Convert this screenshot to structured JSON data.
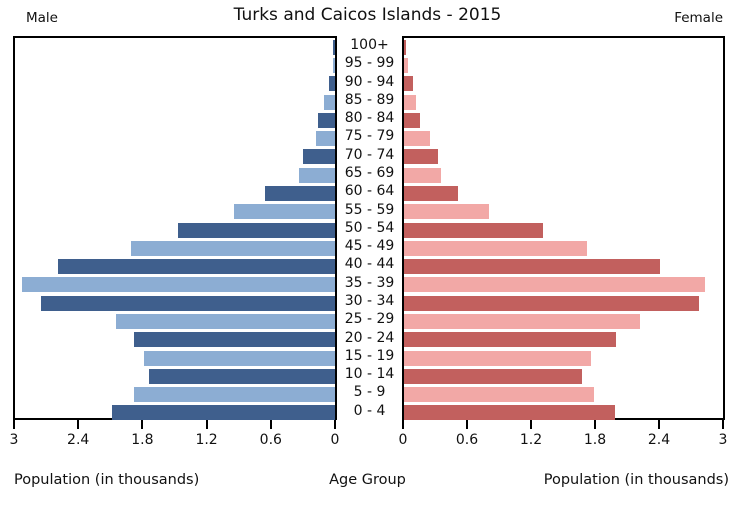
{
  "header": {
    "title": "Turks and Caicos Islands - 2015",
    "left_label": "Male",
    "right_label": "Female"
  },
  "axis": {
    "left_ticks": [
      "3",
      "2.4",
      "1.8",
      "1.2",
      "0.6",
      "0"
    ],
    "right_ticks": [
      "0",
      "0.6",
      "1.2",
      "1.8",
      "2.4",
      "3"
    ],
    "left_caption": "Population (in thousands)",
    "center_caption": "Age Group",
    "right_caption": "Population (in thousands)"
  },
  "colors": {
    "male_dark": "#3f5f8d",
    "male_light": "#8cadd3",
    "female_dark": "#c2605e",
    "female_light": "#f2a8a6",
    "axis_line": "#000000"
  },
  "chart_data": {
    "type": "bar",
    "subtype": "population-pyramid",
    "title": "Turks and Caicos Islands - 2015",
    "xlabel_left": "Population (in thousands)",
    "xlabel_right": "Population (in thousands)",
    "ylabel": "Age Group",
    "unit": "thousands",
    "xlim": [
      0,
      3
    ],
    "grid": false,
    "age_groups": [
      "100+",
      "95 - 99",
      "90 - 94",
      "85 - 89",
      "80 - 84",
      "75 - 79",
      "70 - 74",
      "65 - 69",
      "60 - 64",
      "55 - 59",
      "50 - 54",
      "45 - 49",
      "40 - 44",
      "35 - 39",
      "30 - 34",
      "25 - 29",
      "20 - 24",
      "15 - 19",
      "10 - 14",
      "5 - 9",
      "0 - 4"
    ],
    "series": [
      {
        "name": "Male",
        "values": [
          0.02,
          0.02,
          0.06,
          0.1,
          0.16,
          0.18,
          0.3,
          0.34,
          0.66,
          0.95,
          1.47,
          1.91,
          2.6,
          2.93,
          2.76,
          2.05,
          1.88,
          1.79,
          1.74,
          1.88,
          2.09
        ]
      },
      {
        "name": "Female",
        "values": [
          0.02,
          0.04,
          0.08,
          0.11,
          0.15,
          0.24,
          0.32,
          0.35,
          0.51,
          0.8,
          1.31,
          1.72,
          2.41,
          2.83,
          2.77,
          2.22,
          1.99,
          1.76,
          1.67,
          1.79,
          1.98
        ]
      }
    ]
  }
}
